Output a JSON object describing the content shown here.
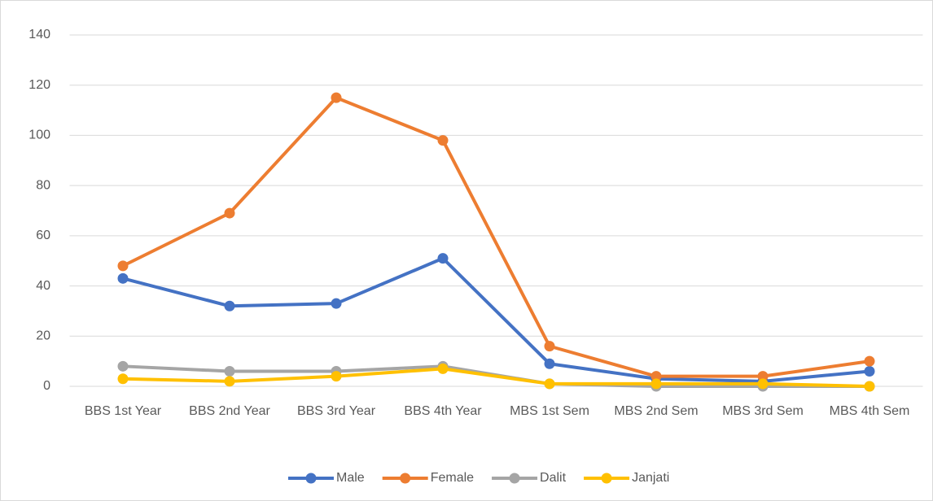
{
  "chart_data": {
    "type": "line",
    "categories": [
      "BBS 1st Year",
      "BBS 2nd Year",
      "BBS 3rd Year",
      "BBS 4th Year",
      "MBS 1st Sem",
      "MBS 2nd Sem",
      "MBS 3rd Sem",
      "MBS 4th Sem"
    ],
    "series": [
      {
        "name": "Male",
        "color": "#4472c4",
        "values": [
          43,
          32,
          33,
          51,
          9,
          3,
          2,
          6
        ]
      },
      {
        "name": "Female",
        "color": "#ed7d31",
        "values": [
          48,
          69,
          115,
          98,
          16,
          4,
          4,
          10
        ]
      },
      {
        "name": "Dalit",
        "color": "#a5a5a5",
        "values": [
          8,
          6,
          6,
          8,
          1,
          0,
          0,
          0
        ]
      },
      {
        "name": "Janjati",
        "color": "#ffc000",
        "values": [
          3,
          2,
          4,
          7,
          1,
          1,
          1,
          0
        ]
      }
    ],
    "ylim": [
      0,
      140
    ],
    "yticks": [
      0,
      20,
      40,
      60,
      80,
      100,
      120,
      140
    ],
    "grid": true,
    "legend": "bottom"
  }
}
